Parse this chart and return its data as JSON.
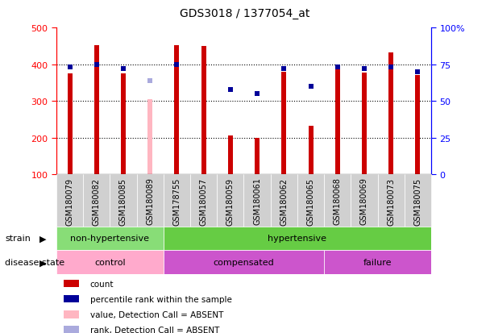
{
  "title": "GDS3018 / 1377054_at",
  "samples": [
    "GSM180079",
    "GSM180082",
    "GSM180085",
    "GSM180089",
    "GSM178755",
    "GSM180057",
    "GSM180059",
    "GSM180061",
    "GSM180062",
    "GSM180065",
    "GSM180068",
    "GSM180069",
    "GSM180073",
    "GSM180075"
  ],
  "counts": [
    375,
    452,
    375,
    null,
    452,
    450,
    207,
    200,
    380,
    233,
    400,
    377,
    432,
    370
  ],
  "absent_count": [
    null,
    null,
    null,
    305,
    null,
    null,
    null,
    null,
    null,
    null,
    null,
    null,
    null,
    null
  ],
  "percentile_ranks": [
    73,
    75,
    72,
    null,
    75,
    null,
    58,
    55,
    72,
    60,
    73,
    72,
    73,
    70
  ],
  "absent_rank": [
    null,
    null,
    null,
    64,
    null,
    null,
    null,
    null,
    null,
    null,
    null,
    null,
    null,
    null
  ],
  "ylim_left": [
    100,
    500
  ],
  "ylim_right": [
    0,
    100
  ],
  "yticks_left": [
    100,
    200,
    300,
    400,
    500
  ],
  "yticks_right": [
    0,
    25,
    50,
    75,
    100
  ],
  "strain_groups": [
    {
      "label": "non-hypertensive",
      "start": 0,
      "end": 4,
      "color": "#88dd77"
    },
    {
      "label": "hypertensive",
      "start": 4,
      "end": 14,
      "color": "#66cc44"
    }
  ],
  "disease_groups": [
    {
      "label": "control",
      "start": 0,
      "end": 4,
      "color": "#ffaacc"
    },
    {
      "label": "compensated",
      "start": 4,
      "end": 10,
      "color": "#dd66dd"
    },
    {
      "label": "failure",
      "start": 10,
      "end": 14,
      "color": "#dd44dd"
    }
  ],
  "bar_color_normal": "#cc0000",
  "bar_color_absent": "#ffb6c1",
  "dot_color_normal": "#000099",
  "dot_color_absent": "#aaaadd",
  "label_strain": "strain",
  "label_disease": "disease state",
  "legend": [
    {
      "label": "count",
      "color": "#cc0000"
    },
    {
      "label": "percentile rank within the sample",
      "color": "#000099"
    },
    {
      "label": "value, Detection Call = ABSENT",
      "color": "#ffb6c1"
    },
    {
      "label": "rank, Detection Call = ABSENT",
      "color": "#aaaadd"
    }
  ]
}
